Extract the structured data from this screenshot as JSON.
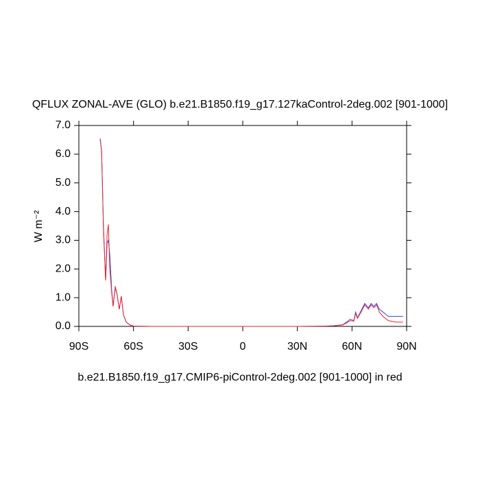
{
  "chart_data": {
    "type": "line",
    "title": "QFLUX ZONAL-AVE (GLO) b.e21.B1850.f19_g17.127kaControl-2deg.002 [901-1000]",
    "xlabel": "b.e21.B1850.f19_g17.CMIP6-piControl-2deg.002 [901-1000] in red",
    "ylabel": "W m⁻²",
    "x": [
      -78.3,
      -77.5,
      -76.5,
      -75.3,
      -74.5,
      -73.8,
      -73,
      -72,
      -71.2,
      -70,
      -69,
      -67.8,
      -66.7,
      -65.5,
      -64,
      -62,
      -60,
      -50,
      -30,
      0,
      30,
      45,
      50,
      55,
      57,
      59,
      61,
      62,
      63,
      65,
      67,
      69,
      70.5,
      72,
      73.5,
      75,
      77,
      80,
      84,
      88
    ],
    "series": [
      {
        "color": "#3344ee",
        "values": [
          6.55,
          6.1,
          3.5,
          1.6,
          2.9,
          3.0,
          2.5,
          1.3,
          0.7,
          1.35,
          1.1,
          0.6,
          1.05,
          0.4,
          0.15,
          0.05,
          0.01,
          0,
          0,
          0,
          0,
          0.01,
          0.02,
          0.06,
          0.15,
          0.25,
          0.2,
          0.5,
          0.3,
          0.55,
          0.8,
          0.65,
          0.8,
          0.7,
          0.8,
          0.6,
          0.5,
          0.35,
          0.35,
          0.35
        ]
      },
      {
        "color": "#ee2222",
        "values": [
          6.5,
          6.1,
          3.4,
          1.6,
          3.2,
          3.55,
          2.0,
          1.2,
          0.7,
          1.4,
          1.1,
          0.6,
          1.05,
          0.4,
          0.15,
          0.05,
          0.01,
          0,
          0,
          0,
          0,
          0.01,
          0.02,
          0.05,
          0.12,
          0.2,
          0.18,
          0.45,
          0.28,
          0.5,
          0.75,
          0.6,
          0.75,
          0.65,
          0.75,
          0.5,
          0.35,
          0.2,
          0.15,
          0.15
        ]
      }
    ],
    "xlim": [
      -90,
      90
    ],
    "xticks": [
      {
        "value": -90,
        "label": "90S"
      },
      {
        "value": -60,
        "label": "60S"
      },
      {
        "value": -30,
        "label": "30S"
      },
      0,
      {
        "value": 30,
        "label": "30N"
      },
      {
        "value": 60,
        "label": "60N"
      },
      {
        "value": 90,
        "label": "90N"
      }
    ],
    "ylim": [
      0,
      7
    ],
    "yticks": [
      {
        "value": 0,
        "label": "0.0"
      },
      {
        "value": 1,
        "label": "1.0"
      },
      {
        "value": 2,
        "label": "2.0"
      },
      {
        "value": 3,
        "label": "3.0"
      },
      {
        "value": 4,
        "label": "4.0"
      },
      {
        "value": 5,
        "label": "5.0"
      },
      {
        "value": 6,
        "label": "6.0"
      },
      {
        "value": 7,
        "label": "7.0"
      }
    ],
    "grid": false
  }
}
